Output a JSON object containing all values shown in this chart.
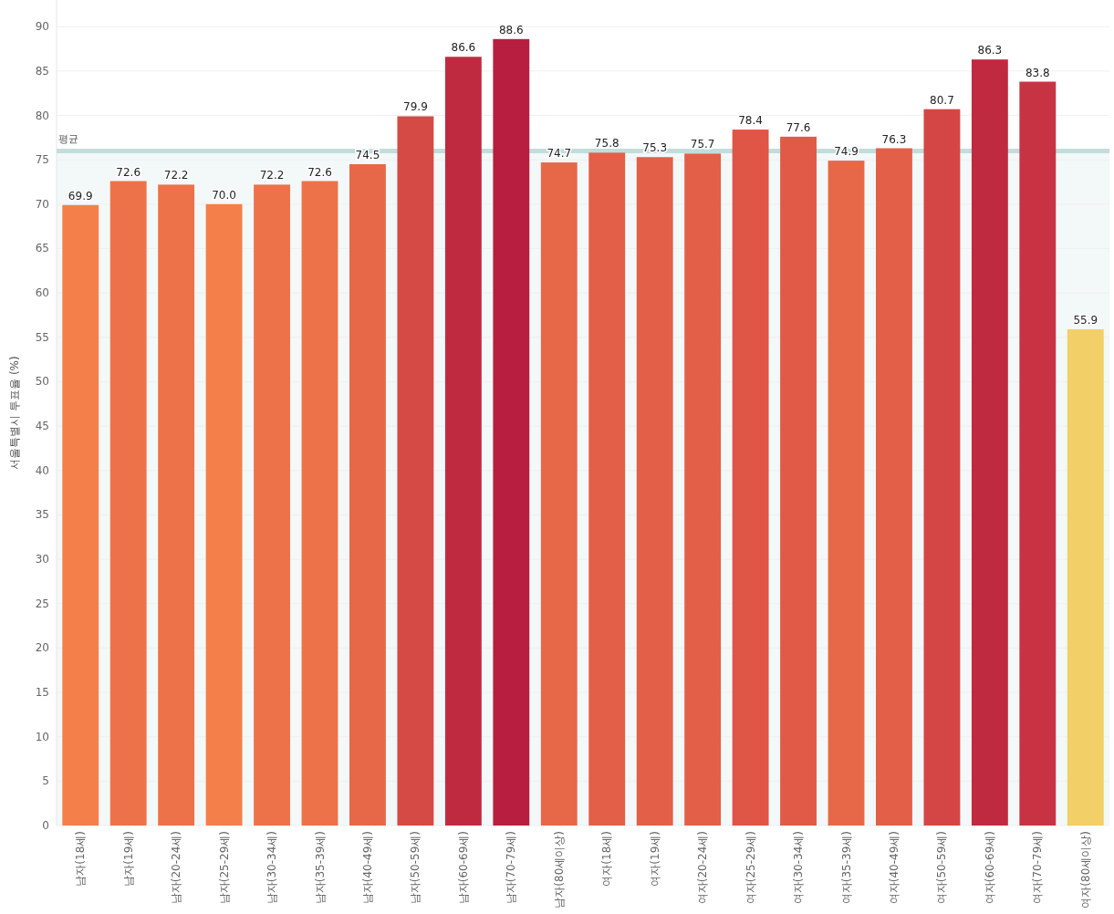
{
  "chart_data": {
    "type": "bar",
    "ylabel": "서울특별시 투표율 (%)",
    "categories": [
      "남자(18세)",
      "남자(19세)",
      "남자(20-24세)",
      "남자(25-29세)",
      "남자(30-34세)",
      "남자(35-39세)",
      "남자(40-49세)",
      "남자(50-59세)",
      "남자(60-69세)",
      "남자(70-79세)",
      "남자(80세이상)",
      "여자(18세)",
      "여자(19세)",
      "여자(20-24세)",
      "여자(25-29세)",
      "여자(30-34세)",
      "여자(35-39세)",
      "여자(40-49세)",
      "여자(50-59세)",
      "여자(60-69세)",
      "여자(70-79세)",
      "여자(80세이상)"
    ],
    "values": [
      69.9,
      72.6,
      72.2,
      70.0,
      72.2,
      72.6,
      74.5,
      79.9,
      86.6,
      88.6,
      74.7,
      75.8,
      75.3,
      75.7,
      78.4,
      77.6,
      74.9,
      76.3,
      80.7,
      86.3,
      83.8,
      55.9
    ],
    "colors": [
      "#f47f4a",
      "#ee7249",
      "#ee7249",
      "#f47f4a",
      "#ee7249",
      "#ee7249",
      "#e76849",
      "#d64a45",
      "#c02a40",
      "#b81e3f",
      "#e76849",
      "#e45f48",
      "#e45f48",
      "#e45f48",
      "#df5546",
      "#e15a47",
      "#e76849",
      "#e45f48",
      "#d44645",
      "#c02a40",
      "#c83343",
      "#f2cf67"
    ],
    "value_labels": [
      "69.9",
      "72.6",
      "72.2",
      "70.0",
      "72.2",
      "72.6",
      "74.5",
      "79.9",
      "86.6",
      "88.6",
      "74.7",
      "75.8",
      "75.3",
      "75.7",
      "78.4",
      "77.6",
      "74.9",
      "76.3",
      "80.7",
      "86.3",
      "83.8",
      "55.9"
    ],
    "ylim": [
      0,
      93
    ],
    "yticks": [
      0,
      5,
      10,
      15,
      20,
      25,
      30,
      35,
      40,
      45,
      50,
      55,
      60,
      65,
      70,
      75,
      80,
      85,
      90
    ],
    "grid": "y",
    "ref_lines": [
      {
        "axis": "y",
        "value": 76,
        "label": "평균",
        "color": "#c3dddb"
      }
    ],
    "bands": [
      {
        "axis": "y",
        "from": 0,
        "to": 76,
        "color": "#f3f8f8"
      }
    ]
  }
}
